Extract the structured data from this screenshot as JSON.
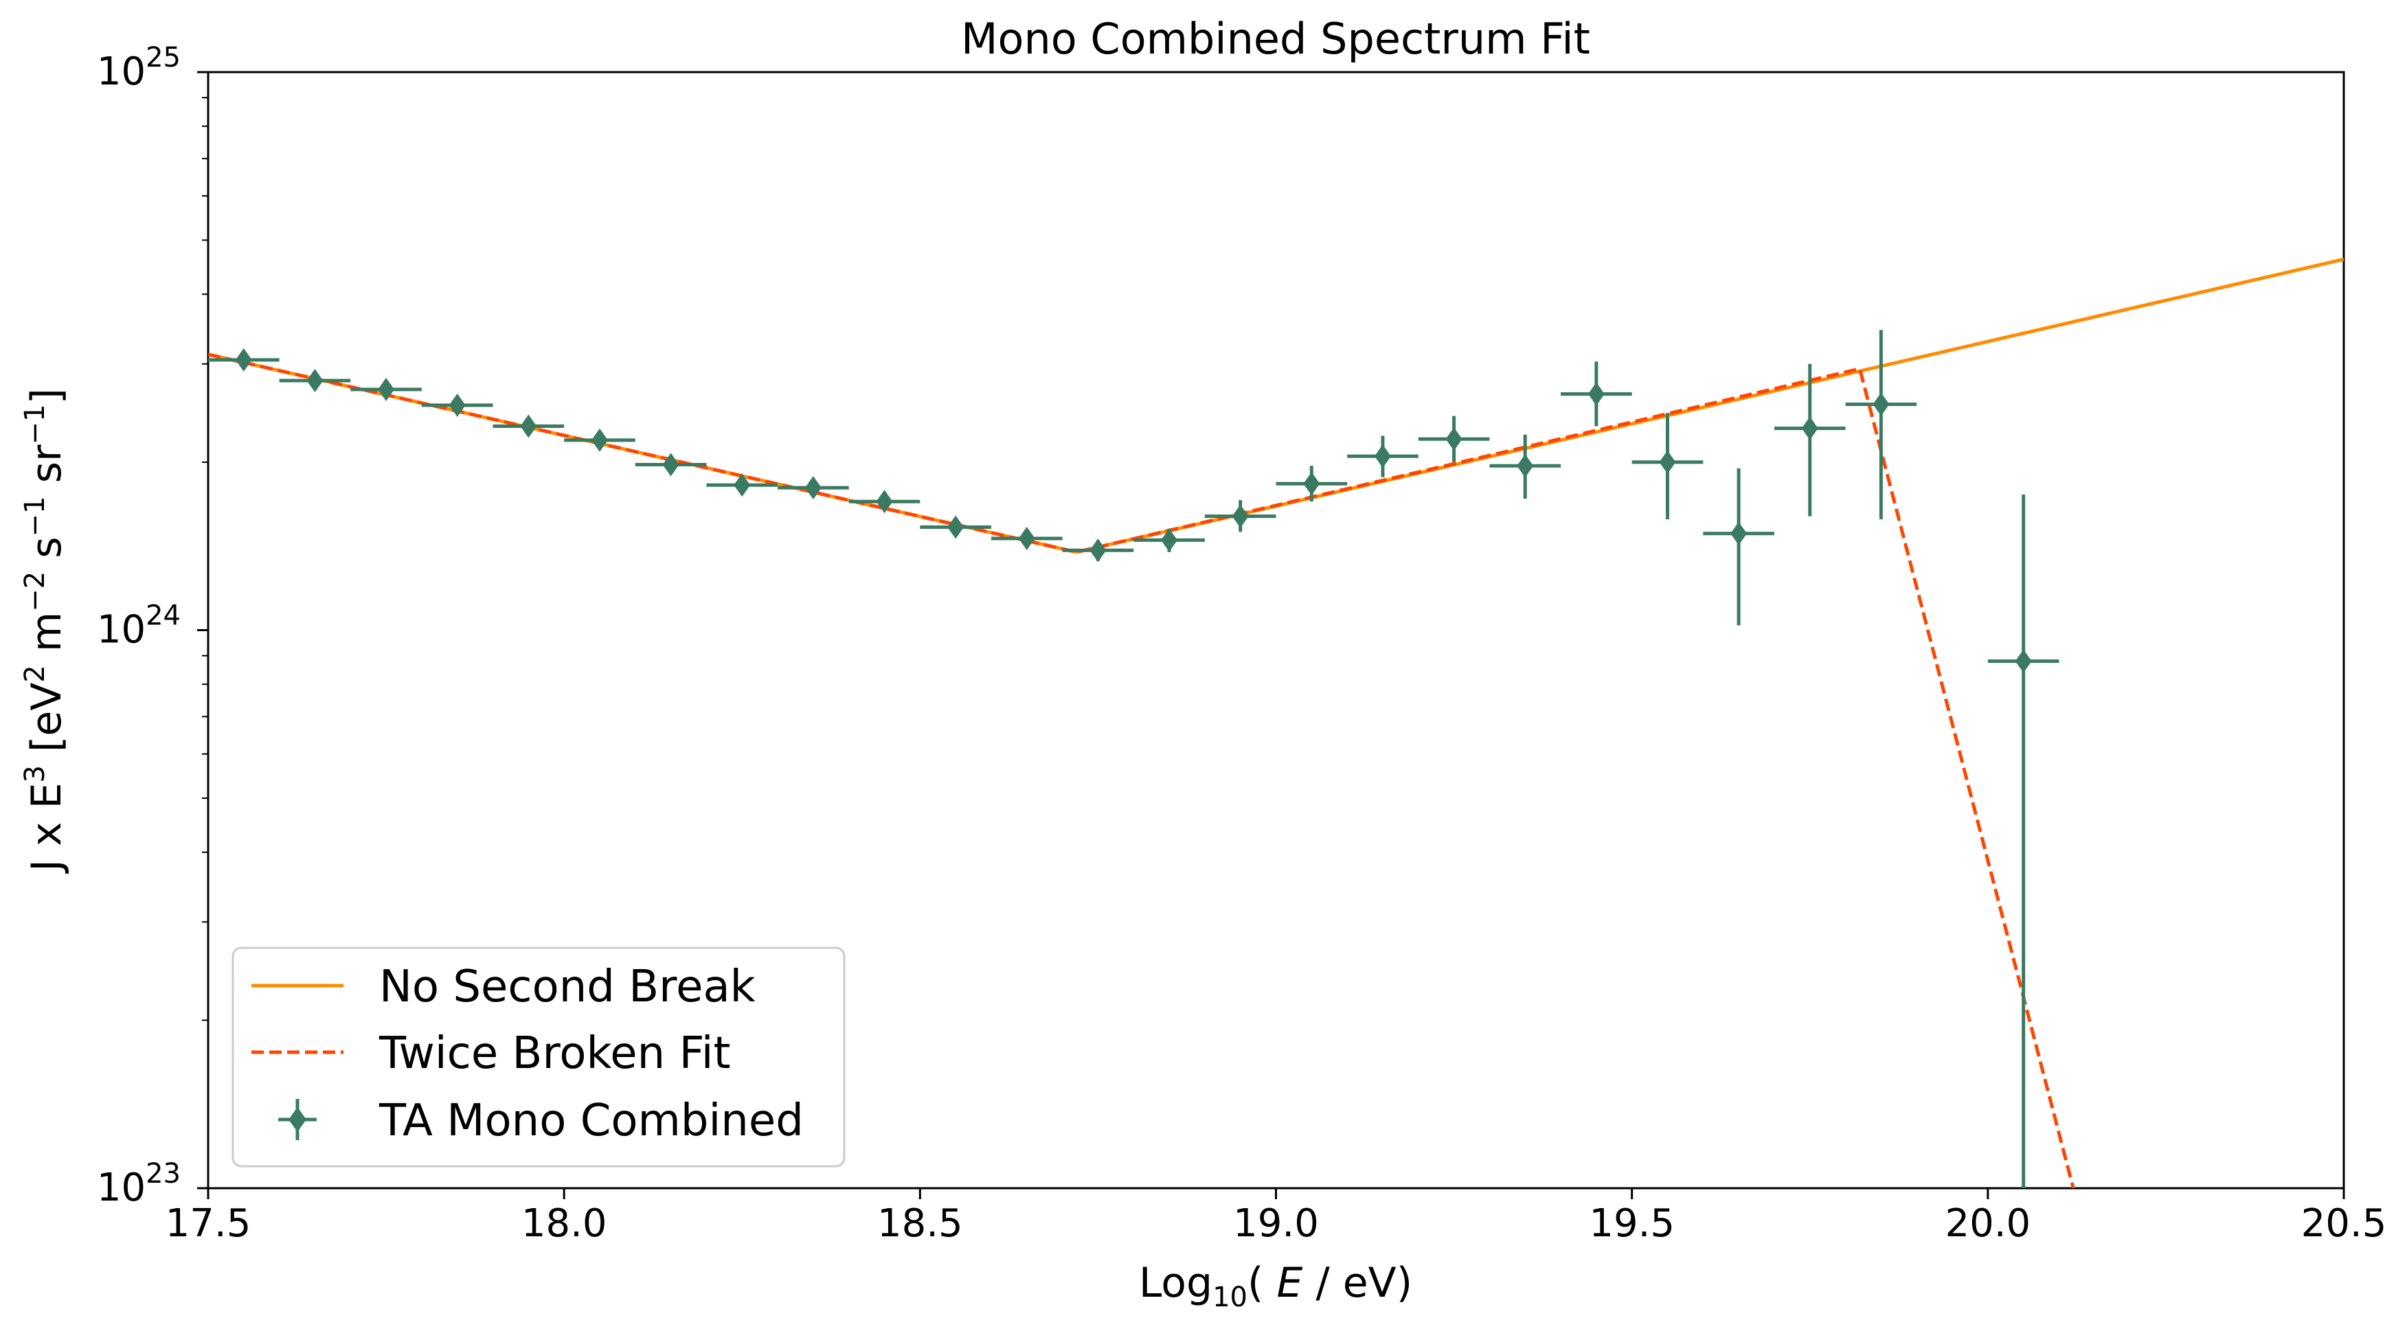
{
  "chart_data": {
    "type": "scatter",
    "title": "Mono Combined Spectrum Fit",
    "xlabel": "Log₁₀( E / eV)",
    "ylabel": "J x E³ [eV² m⁻² s⁻¹ sr⁻¹]",
    "xlim": [
      17.5,
      20.5
    ],
    "ylim": [
      1e+23,
      1e+25
    ],
    "yscale": "log",
    "grid": false,
    "legend_position": "lower-left",
    "x_ticks": [
      "17.5",
      "18.0",
      "18.5",
      "19.0",
      "19.5",
      "20.0",
      "20.5"
    ],
    "y_ticks": [
      {
        "base": "10",
        "exp": "23"
      },
      {
        "base": "10",
        "exp": "24"
      },
      {
        "base": "10",
        "exp": "25"
      }
    ],
    "colors": {
      "no_second_break": "#ff8c00",
      "twice_broken": "#ff4500",
      "data": "#3b7a62"
    },
    "series": [
      {
        "name": "No Second Break",
        "kind": "line",
        "style": "solid",
        "x": [
          17.5,
          18.72,
          20.5
        ],
        "y": [
          3.12e+24,
          1.38e+24,
          4.62e+24
        ]
      },
      {
        "name": "Twice Broken Fit",
        "kind": "line",
        "style": "dashed",
        "x": [
          17.5,
          18.72,
          19.82,
          20.12
        ],
        "y": [
          3.12e+24,
          1.38e+24,
          2.94e+24,
          1e+23
        ]
      },
      {
        "name": "TA Mono Combined",
        "kind": "errorbar",
        "points": [
          {
            "x": 17.55,
            "y": 3.05e+24,
            "y_lo": 2.95e+24,
            "y_hi": 3.15e+24
          },
          {
            "x": 17.65,
            "y": 2.8e+24,
            "y_lo": 2.71e+24,
            "y_hi": 2.89e+24
          },
          {
            "x": 17.75,
            "y": 2.7e+24,
            "y_lo": 2.61e+24,
            "y_hi": 2.79e+24
          },
          {
            "x": 17.85,
            "y": 2.53e+24,
            "y_lo": 2.45e+24,
            "y_hi": 2.61e+24
          },
          {
            "x": 17.95,
            "y": 2.32e+24,
            "y_lo": 2.25e+24,
            "y_hi": 2.39e+24
          },
          {
            "x": 18.05,
            "y": 2.19e+24,
            "y_lo": 2.12e+24,
            "y_hi": 2.26e+24
          },
          {
            "x": 18.15,
            "y": 1.98e+24,
            "y_lo": 1.92e+24,
            "y_hi": 2.04e+24
          },
          {
            "x": 18.25,
            "y": 1.82e+24,
            "y_lo": 1.76e+24,
            "y_hi": 1.88e+24
          },
          {
            "x": 18.35,
            "y": 1.8e+24,
            "y_lo": 1.74e+24,
            "y_hi": 1.86e+24
          },
          {
            "x": 18.45,
            "y": 1.7e+24,
            "y_lo": 1.64e+24,
            "y_hi": 1.76e+24
          },
          {
            "x": 18.55,
            "y": 1.53e+24,
            "y_lo": 1.48e+24,
            "y_hi": 1.58e+24
          },
          {
            "x": 18.65,
            "y": 1.46e+24,
            "y_lo": 1.41e+24,
            "y_hi": 1.51e+24
          },
          {
            "x": 18.75,
            "y": 1.39e+24,
            "y_lo": 1.33e+24,
            "y_hi": 1.45e+24
          },
          {
            "x": 18.85,
            "y": 1.45e+24,
            "y_lo": 1.38e+24,
            "y_hi": 1.52e+24
          },
          {
            "x": 18.95,
            "y": 1.6e+24,
            "y_lo": 1.5e+24,
            "y_hi": 1.71e+24
          },
          {
            "x": 19.05,
            "y": 1.83e+24,
            "y_lo": 1.7e+24,
            "y_hi": 1.97e+24
          },
          {
            "x": 19.15,
            "y": 2.05e+24,
            "y_lo": 1.88e+24,
            "y_hi": 2.23e+24
          },
          {
            "x": 19.25,
            "y": 2.2e+24,
            "y_lo": 2e+24,
            "y_hi": 2.42e+24
          },
          {
            "x": 19.35,
            "y": 1.97e+24,
            "y_lo": 1.72e+24,
            "y_hi": 2.24e+24
          },
          {
            "x": 19.45,
            "y": 2.65e+24,
            "y_lo": 2.32e+24,
            "y_hi": 3.03e+24
          },
          {
            "x": 19.55,
            "y": 2e+24,
            "y_lo": 1.58e+24,
            "y_hi": 2.45e+24
          },
          {
            "x": 19.65,
            "y": 1.49e+24,
            "y_lo": 1.02e+24,
            "y_hi": 1.95e+24
          },
          {
            "x": 19.75,
            "y": 2.3e+24,
            "y_lo": 1.6e+24,
            "y_hi": 3e+24
          },
          {
            "x": 19.85,
            "y": 2.54e+24,
            "y_lo": 1.58e+24,
            "y_hi": 3.45e+24
          },
          {
            "x": 20.05,
            "y": 8.8e+23,
            "y_lo": 1e+23,
            "y_hi": 1.75e+24
          }
        ]
      }
    ]
  }
}
